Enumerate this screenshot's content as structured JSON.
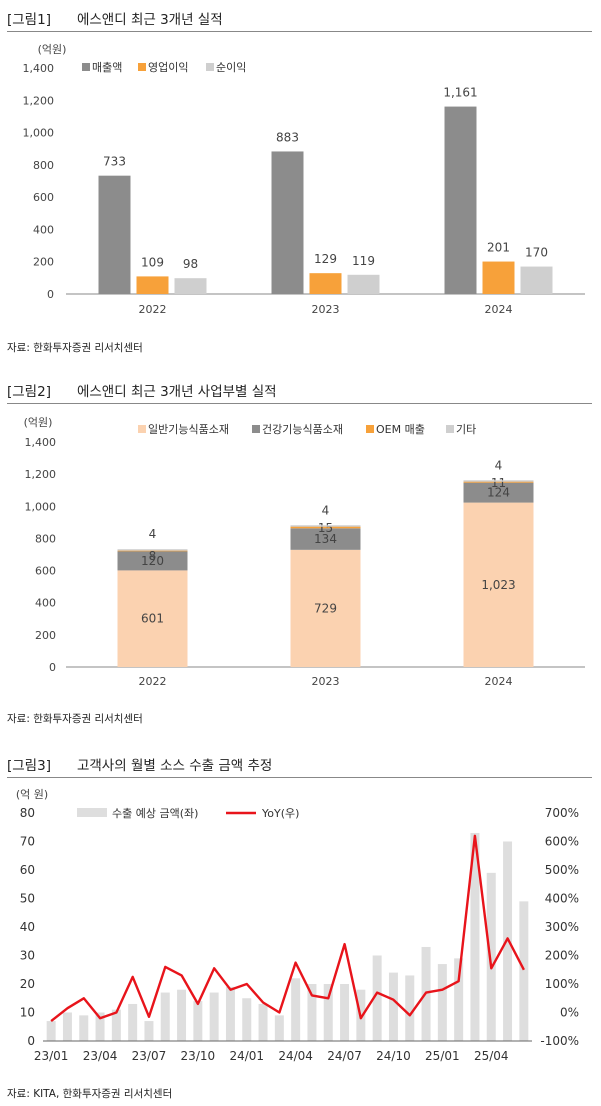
{
  "figures": [
    {
      "tag": "[그림1]",
      "title": "에스앤디 최근 3개년 실적",
      "source": "자료: 한화투자증권 리서치센터"
    },
    {
      "tag": "[그림2]",
      "title": "에스앤디 최근 3개년 사업부별 실적",
      "source": "자료: 한화투자증권 리서치센터"
    },
    {
      "tag": "[그림3]",
      "title": "고객사의 월별 소스 수출 금액 추정",
      "source": "자료: KITA, 한화투자증권 리서치센터"
    }
  ],
  "colors": {
    "dark": "#8c8c8c",
    "orange": "#f7a13a",
    "light": "#cfcfcf",
    "peach": "#fbd2b0",
    "red": "#e8141b",
    "bar3": "#dedede"
  },
  "chart_data": [
    {
      "type": "bar",
      "unit": "(억원)",
      "categories": [
        "2022",
        "2023",
        "2024"
      ],
      "series": [
        {
          "name": "매출액",
          "values": [
            733,
            883,
            1161
          ],
          "labels": [
            "733",
            "883",
            "1,161"
          ],
          "color": "#8c8c8c"
        },
        {
          "name": "영업이익",
          "values": [
            109,
            129,
            201
          ],
          "labels": [
            "109",
            "129",
            "201"
          ],
          "color": "#f7a13a"
        },
        {
          "name": "순이익",
          "values": [
            98,
            119,
            170
          ],
          "labels": [
            "98",
            "119",
            "170"
          ],
          "color": "#cfcfcf"
        }
      ],
      "ylim": [
        0,
        1400
      ],
      "yticks": [
        "0",
        "200",
        "400",
        "600",
        "800",
        "1,000",
        "1,200",
        "1,400"
      ],
      "legend": "top-left"
    },
    {
      "type": "bar",
      "stacked": true,
      "unit": "(억원)",
      "categories": [
        "2022",
        "2023",
        "2024"
      ],
      "series": [
        {
          "name": "일반기능식품소재",
          "values": [
            601,
            729,
            1023
          ],
          "labels": [
            "601",
            "729",
            "1,023"
          ],
          "color": "#fbd2b0"
        },
        {
          "name": "건강기능식품소재",
          "values": [
            120,
            134,
            124
          ],
          "labels": [
            "120",
            "134",
            "124"
          ],
          "color": "#8c8c8c"
        },
        {
          "name": "OEM 매출",
          "values": [
            8,
            15,
            11
          ],
          "labels": [
            "8",
            "15",
            "11"
          ],
          "color": "#f7a13a"
        },
        {
          "name": "기타",
          "values": [
            4,
            4,
            4
          ],
          "labels": [
            "4",
            "4",
            "4"
          ],
          "color": "#cfcfcf"
        }
      ],
      "ylim": [
        0,
        1400
      ],
      "yticks": [
        "0",
        "200",
        "400",
        "600",
        "800",
        "1,000",
        "1,200",
        "1,400"
      ],
      "legend": "top"
    },
    {
      "type": "bar",
      "unit": "(억 원)",
      "x": [
        "23/01",
        "23/02",
        "23/03",
        "23/04",
        "23/05",
        "23/06",
        "23/07",
        "23/08",
        "23/09",
        "23/10",
        "23/11",
        "23/12",
        "24/01",
        "24/02",
        "24/03",
        "24/04",
        "24/05",
        "24/06",
        "24/07",
        "24/08",
        "24/09",
        "24/10",
        "24/11",
        "24/12",
        "25/01",
        "25/02",
        "25/03",
        "25/04",
        "25/05",
        "25/06"
      ],
      "xticks": [
        "23/01",
        "23/04",
        "23/07",
        "23/10",
        "24/01",
        "24/04",
        "24/07",
        "24/10",
        "25/01",
        "25/04"
      ],
      "series": [
        {
          "name": "수출 예상 금액(좌)",
          "axis": "left",
          "type": "bar",
          "color": "#dedede",
          "values": [
            7,
            10,
            9,
            10,
            11,
            13,
            7,
            17,
            18,
            14,
            17,
            19,
            15,
            13,
            9,
            22,
            20,
            20,
            20,
            18,
            30,
            24,
            23,
            33,
            27,
            29,
            73,
            59,
            70,
            49
          ]
        },
        {
          "name": "YoY(우)",
          "axis": "right",
          "type": "line",
          "color": "#e8141b",
          "values": [
            -30,
            15,
            50,
            -20,
            0,
            125,
            -15,
            160,
            130,
            30,
            155,
            80,
            100,
            35,
            0,
            175,
            60,
            50,
            240,
            -20,
            70,
            45,
            -10,
            70,
            80,
            110,
            620,
            155,
            260,
            150
          ]
        }
      ],
      "ylim_left": [
        0,
        80
      ],
      "yticks_left": [
        "0",
        "10",
        "20",
        "30",
        "40",
        "50",
        "60",
        "70",
        "80"
      ],
      "ylim_right": [
        -100,
        700
      ],
      "yticks_right": [
        "-100%",
        "0%",
        "100%",
        "200%",
        "300%",
        "400%",
        "500%",
        "600%",
        "700%"
      ],
      "legend": "top"
    }
  ]
}
